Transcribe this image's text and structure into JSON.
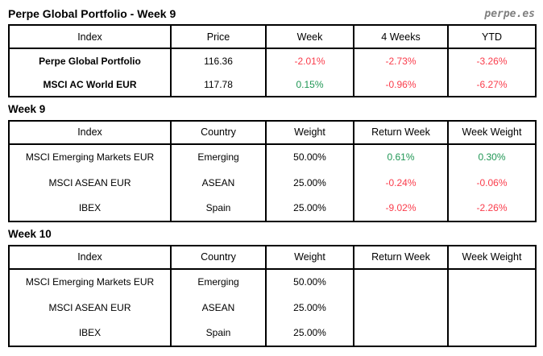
{
  "header": {
    "title": "Perpe Global Portfolio - Week 9",
    "logo": "perpe.es"
  },
  "colors": {
    "positive_value": "#1f9654",
    "negative_value": "#fa3c4b",
    "logo_gray": "#7f7f7f",
    "border": "#000000"
  },
  "summary": {
    "columns": [
      "Index",
      "Price",
      "Week",
      "4 Weeks",
      "YTD"
    ],
    "rows": [
      {
        "index": "Perpe Global Portfolio",
        "price": "116.36",
        "week": "-2.01%",
        "week_sign": "neg",
        "four_weeks": "-2.73%",
        "four_weeks_sign": "neg",
        "ytd": "-3.26%",
        "ytd_sign": "neg"
      },
      {
        "index": "MSCI AC World EUR",
        "price": "117.78",
        "week": "0.15%",
        "week_sign": "pos",
        "four_weeks": "-0.96%",
        "four_weeks_sign": "neg",
        "ytd": "-6.27%",
        "ytd_sign": "neg"
      }
    ]
  },
  "week9": {
    "heading": "Week 9",
    "columns": [
      "Index",
      "Country",
      "Weight",
      "Return Week",
      "Week Weight"
    ],
    "rows": [
      {
        "index": "MSCI Emerging Markets EUR",
        "country": "Emerging",
        "weight": "50.00%",
        "return_week": "0.61%",
        "return_week_sign": "pos",
        "week_weight": "0.30%",
        "week_weight_sign": "pos"
      },
      {
        "index": "MSCI ASEAN EUR",
        "country": "ASEAN",
        "weight": "25.00%",
        "return_week": "-0.24%",
        "return_week_sign": "neg",
        "week_weight": "-0.06%",
        "week_weight_sign": "neg"
      },
      {
        "index": "IBEX",
        "country": "Spain",
        "weight": "25.00%",
        "return_week": "-9.02%",
        "return_week_sign": "neg",
        "week_weight": "-2.26%",
        "week_weight_sign": "neg"
      }
    ]
  },
  "week10": {
    "heading": "Week 10",
    "columns": [
      "Index",
      "Country",
      "Weight",
      "Return Week",
      "Week Weight"
    ],
    "rows": [
      {
        "index": "MSCI Emerging Markets EUR",
        "country": "Emerging",
        "weight": "50.00%",
        "return_week": "",
        "week_weight": ""
      },
      {
        "index": "MSCI ASEAN EUR",
        "country": "ASEAN",
        "weight": "25.00%",
        "return_week": "",
        "week_weight": ""
      },
      {
        "index": "IBEX",
        "country": "Spain",
        "weight": "25.00%",
        "return_week": "",
        "week_weight": ""
      }
    ]
  }
}
